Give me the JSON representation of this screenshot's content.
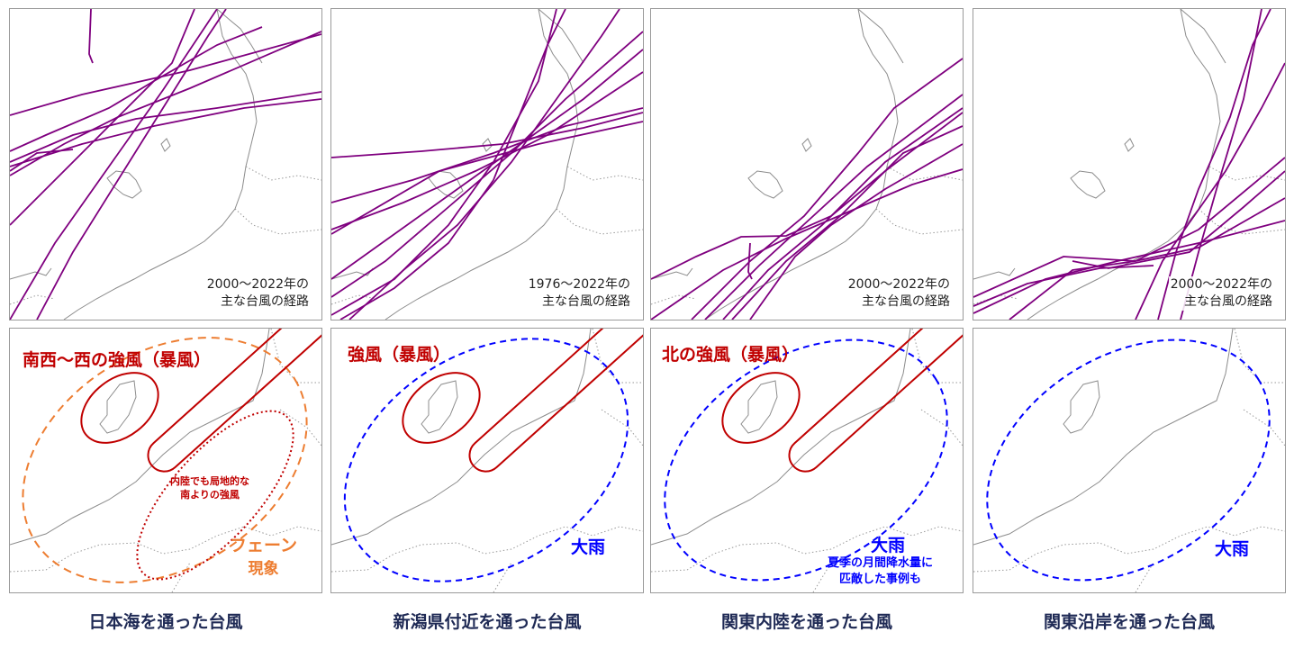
{
  "panels": [
    {
      "period_line1": "2000～2022年の",
      "period_line2": "主な台風の経路",
      "wind_label": "南西～西の強風（暴風）",
      "inland_line1": "内陸でも局地的な",
      "inland_line2": "南よりの強風",
      "foehn_line1": "フェーン",
      "foehn_line2": "現象",
      "caption": "日本海を通った台風"
    },
    {
      "period_line1": "1976～2022年の",
      "period_line2": "主な台風の経路",
      "wind_label": "強風（暴風）",
      "rain_label": "大雨",
      "caption": "新潟県付近を通った台風"
    },
    {
      "period_line1": "2000～2022年の",
      "period_line2": "主な台風の経路",
      "wind_label": "北の強風（暴風）",
      "rain_label": "大雨",
      "rain_note_line1": "夏季の月間降水量に",
      "rain_note_line2": "匹敵した事例も",
      "caption": "関東内陸を通った台風"
    },
    {
      "period_line1": "2000～2022年の",
      "period_line2": "主な台風の経路",
      "rain_label": "大雨",
      "caption": "関東沿岸を通った台風"
    }
  ],
  "colors": {
    "track": "#7f007f",
    "wind_red": "#c00000",
    "foehn_orange": "#ed7d31",
    "rain_blue": "#0000ff",
    "coast": "#8c8c8c",
    "caption": "#1f2a55"
  }
}
